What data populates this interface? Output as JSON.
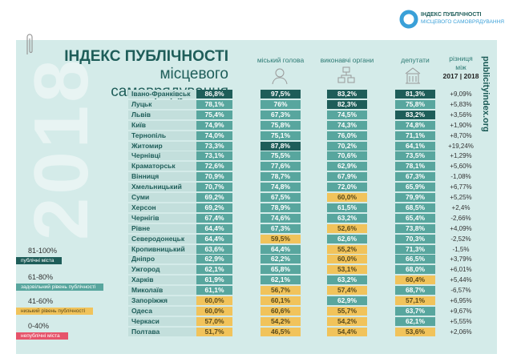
{
  "logo": {
    "line1": "ІНДЕКС ПУБЛІЧНОСТІ",
    "line2": "МІСЦЕВОГО САМОВРЯДУВАННЯ"
  },
  "header": {
    "title_line1": "ІНДЕКС ПУБЛІЧНОСТІ",
    "title_line2": "місцевого самоврядування"
  },
  "columns": {
    "mayor": "міський голова",
    "executive": "виконавчі органи",
    "deputies": "депутати",
    "difference_line1": "різниця",
    "difference_line2": "між",
    "difference_line3": "2017 | 2018"
  },
  "year": "2018",
  "site": "publicityindex.org",
  "legend": [
    {
      "range": "81-100%",
      "label": "публічні міста",
      "color": "#1e5d59"
    },
    {
      "range": "61-80%",
      "label": "задовільний рівень публічності",
      "color": "#58a69e"
    },
    {
      "range": "41-60%",
      "label": "низький рівень публічності",
      "color": "#f1c35b"
    },
    {
      "range": "0-40%",
      "label": "непублічні міста",
      "color": "#e6546b"
    }
  ],
  "rows": [
    [
      "Івано-Франківськ",
      "86,8%",
      "97,5%",
      "83,2%",
      "81,3%",
      "+9,09%"
    ],
    [
      "Луцьк",
      "78,1%",
      "76%",
      "82,3%",
      "75,8%",
      "+5,83%"
    ],
    [
      "Львів",
      "75,4%",
      "67,3%",
      "74,5%",
      "83,2%",
      "+3,56%"
    ],
    [
      "Київ",
      "74,9%",
      "75,8%",
      "74,3%",
      "74,8%",
      "+1,90%"
    ],
    [
      "Тернопіль",
      "74,0%",
      "75,1%",
      "76,0%",
      "71,1%",
      "+8,70%"
    ],
    [
      "Житомир",
      "73,3%",
      "87,8%",
      "70,2%",
      "64,1%",
      "+19,24%"
    ],
    [
      "Чернівці",
      "73,1%",
      "75,5%",
      "70,6%",
      "73,5%",
      "+1,29%"
    ],
    [
      "Краматорськ",
      "72,6%",
      "77,6%",
      "62,9%",
      "78,1%",
      "+5,60%"
    ],
    [
      "Вінниця",
      "70,9%",
      "78,7%",
      "67,9%",
      "67,3%",
      "-1,08%"
    ],
    [
      "Хмельницький",
      "70,7%",
      "74,8%",
      "72,0%",
      "65,9%",
      "+6,77%"
    ],
    [
      "Суми",
      "69,2%",
      "67,5%",
      "60,0%",
      "79,9%",
      "+5,25%"
    ],
    [
      "Херсон",
      "69,2%",
      "78,9%",
      "61,5%",
      "68,5%",
      "+2,4%"
    ],
    [
      "Чернігів",
      "67,4%",
      "74,6%",
      "63,2%",
      "65,4%",
      "-2,66%"
    ],
    [
      "Рівне",
      "64,4%",
      "67,3%",
      "52,6%",
      "73,8%",
      "+4,09%"
    ],
    [
      "Северодонецьк",
      "64,4%",
      "59,5%",
      "62,6%",
      "70,3%",
      "-2,52%"
    ],
    [
      "Кропивницький",
      "63,6%",
      "64,4%",
      "55,2%",
      "71,3%",
      "-1,5%"
    ],
    [
      "Дніпро",
      "62,9%",
      "62,2%",
      "60,0%",
      "66,5%",
      "+3,79%"
    ],
    [
      "Ужгород",
      "62,1%",
      "65,8%",
      "53,1%",
      "68,0%",
      "+6,01%"
    ],
    [
      "Харків",
      "61,9%",
      "62,1%",
      "63,2%",
      "60,4%",
      "+5,44%"
    ],
    [
      "Миколаїв",
      "61,1%",
      "56,7%",
      "57,4%",
      "68,7%",
      "-6,57%"
    ],
    [
      "Запоріжжя",
      "60,0%",
      "60,1%",
      "62,9%",
      "57,1%",
      "+6,95%"
    ],
    [
      "Одеса",
      "60,0%",
      "60,6%",
      "55,7%",
      "63,7%",
      "+9,67%"
    ],
    [
      "Черкаси",
      "57,0%",
      "54,2%",
      "54,2%",
      "62,1%",
      "+5,55%"
    ],
    [
      "Полтава",
      "51,7%",
      "46,5%",
      "54,4%",
      "53,6%",
      "+2,06%"
    ]
  ]
}
